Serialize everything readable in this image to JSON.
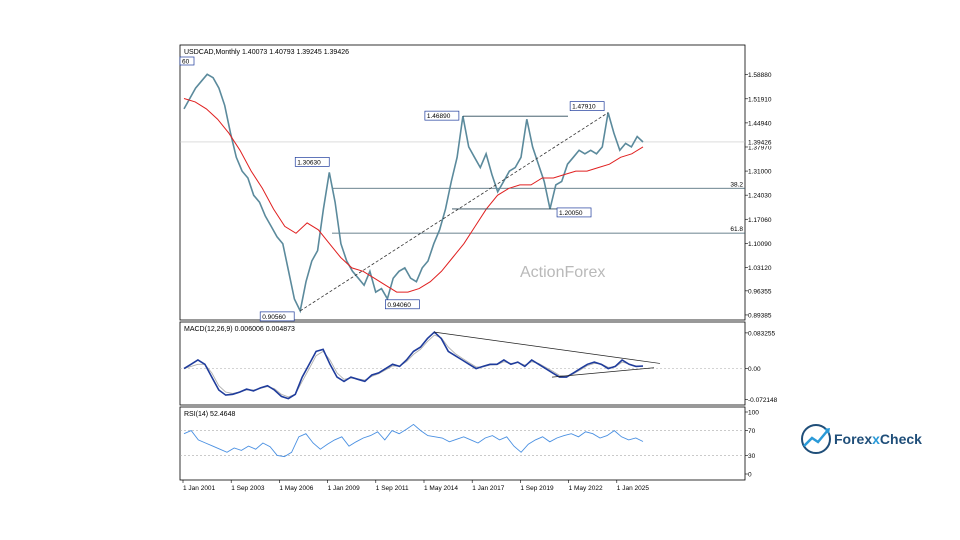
{
  "watermark": "ActionForex",
  "brand": {
    "name_a": "Forex",
    "name_x": "x",
    "name_b": "Check"
  },
  "colors": {
    "price": "#5b8a9c",
    "ma": "#e02020",
    "macd": "#1f3c9c",
    "signal": "#b0b0b0",
    "rsi": "#4a90e2",
    "text": "#000000"
  },
  "chart_data": [
    {
      "type": "line",
      "panel": "price",
      "header": "USDCAD,Monthly  1.40073 1.40793 1.39245 1.39426",
      "y_ticks": [
        "1.58880",
        "1.51910",
        "1.44940",
        "1.37970",
        "1.31000",
        "1.24030",
        "1.17060",
        "1.10090",
        "1.03120",
        "0.96355",
        "0.89385"
      ],
      "ylim": [
        0.885,
        1.64
      ],
      "last_price": "1.39426",
      "series": [
        {
          "values": [
            1.49,
            1.52,
            1.55,
            1.57,
            1.59,
            1.58,
            1.55,
            1.5,
            1.42,
            1.35,
            1.31,
            1.29,
            1.24,
            1.22,
            1.18,
            1.15,
            1.12,
            1.1,
            1.02,
            0.94,
            0.9056,
            0.99,
            1.05,
            1.08,
            1.2,
            1.3063,
            1.22,
            1.1,
            1.05,
            1.02,
            1.0,
            0.98,
            1.02,
            0.96,
            0.97,
            0.9406,
            1.0,
            1.02,
            1.03,
            1.0,
            0.99,
            1.03,
            1.05,
            1.1,
            1.14,
            1.2,
            1.28,
            1.35,
            1.4689,
            1.38,
            1.35,
            1.32,
            1.36,
            1.3,
            1.25,
            1.28,
            1.31,
            1.32,
            1.35,
            1.46,
            1.38,
            1.33,
            1.28,
            1.2005,
            1.27,
            1.28,
            1.33,
            1.35,
            1.37,
            1.36,
            1.37,
            1.36,
            1.38,
            1.4791,
            1.42,
            1.37,
            1.39,
            1.38,
            1.41,
            1.39426
          ]
        },
        {
          "values": [
            1.52,
            1.51,
            1.49,
            1.46,
            1.42,
            1.37,
            1.31,
            1.26,
            1.2,
            1.15,
            1.13,
            1.16,
            1.14,
            1.1,
            1.06,
            1.03,
            1.02,
            1.0,
            0.98,
            0.96,
            0.96,
            0.97,
            0.99,
            1.02,
            1.06,
            1.1,
            1.15,
            1.2,
            1.24,
            1.26,
            1.27,
            1.27,
            1.29,
            1.29,
            1.3,
            1.31,
            1.31,
            1.32,
            1.33,
            1.35,
            1.36,
            1.38
          ]
        }
      ],
      "levels": [
        {
          "label": "38.2",
          "value": 1.2603
        },
        {
          "label": "61.8",
          "value": 1.1306
        }
      ],
      "annotations": [
        "0.90560",
        "1.30630",
        "0.94060",
        "1.46890",
        "1.20050",
        "1.47910",
        "60"
      ]
    },
    {
      "type": "line",
      "panel": "macd",
      "header": "MACD(12,26,9) 0.006006 0.004873",
      "y_ticks": [
        "0.083255",
        "0.00",
        "-0.072148"
      ],
      "ylim": [
        -0.078,
        0.09
      ],
      "series": [
        {
          "values": [
            0.0,
            0.01,
            0.02,
            0.01,
            -0.02,
            -0.05,
            -0.062,
            -0.06,
            -0.055,
            -0.048,
            -0.052,
            -0.045,
            -0.04,
            -0.05,
            -0.065,
            -0.07,
            -0.06,
            -0.02,
            0.01,
            0.04,
            0.045,
            0.01,
            -0.02,
            -0.03,
            -0.02,
            -0.025,
            -0.03,
            -0.015,
            -0.01,
            0.0,
            0.01,
            0.005,
            0.02,
            0.04,
            0.05,
            0.07,
            0.085,
            0.07,
            0.04,
            0.03,
            0.02,
            0.01,
            0.0,
            0.005,
            0.01,
            0.01,
            0.02,
            0.01,
            0.015,
            0.005,
            0.02,
            0.01,
            0.0,
            -0.01,
            -0.02,
            -0.02,
            -0.01,
            0.0,
            0.01,
            0.015,
            0.01,
            0.0,
            0.005,
            0.02,
            0.01,
            0.005,
            0.006006
          ]
        },
        {
          "values": [
            0.0,
            0.005,
            0.01,
            0.01,
            -0.01,
            -0.04,
            -0.055,
            -0.058,
            -0.055,
            -0.05,
            -0.05,
            -0.046,
            -0.042,
            -0.047,
            -0.06,
            -0.066,
            -0.06,
            -0.03,
            0.0,
            0.03,
            0.04,
            0.02,
            -0.01,
            -0.025,
            -0.022,
            -0.024,
            -0.027,
            -0.018,
            -0.012,
            -0.003,
            0.006,
            0.006,
            0.016,
            0.033,
            0.045,
            0.063,
            0.078,
            0.072,
            0.05,
            0.035,
            0.024,
            0.014,
            0.004,
            0.004,
            0.008,
            0.009,
            0.016,
            0.012,
            0.014,
            0.008,
            0.016,
            0.012,
            0.003,
            -0.006,
            -0.016,
            -0.018,
            -0.012,
            -0.003,
            0.007,
            0.012,
            0.011,
            0.003,
            0.004,
            0.015,
            0.011,
            0.006,
            0.004873
          ]
        }
      ]
    },
    {
      "type": "line",
      "panel": "rsi",
      "header": "RSI(14) 52.4648",
      "y_ticks": [
        "100",
        "70",
        "30",
        "0"
      ],
      "ylim": [
        0,
        100
      ],
      "series": [
        {
          "values": [
            65,
            70,
            55,
            50,
            45,
            40,
            35,
            42,
            38,
            45,
            40,
            50,
            44,
            30,
            28,
            35,
            60,
            65,
            50,
            40,
            48,
            55,
            60,
            45,
            52,
            58,
            62,
            68,
            55,
            70,
            65,
            72,
            80,
            70,
            62,
            60,
            58,
            52,
            56,
            60,
            55,
            50,
            58,
            62,
            55,
            60,
            45,
            35,
            48,
            55,
            60,
            52,
            58,
            62,
            65,
            60,
            68,
            65,
            58,
            62,
            70,
            60,
            55,
            58,
            52.4648
          ]
        }
      ]
    },
    {
      "type": "line",
      "panel": "time-axis",
      "categories": [
        "1 Jan 2001",
        "1 Sep 2003",
        "1 May 2006",
        "1 Jan 2009",
        "1 Sep 2011",
        "1 May 2014",
        "1 Jan 2017",
        "1 Sep 2019",
        "1 May 2022",
        "1 Jan 2025"
      ]
    }
  ]
}
